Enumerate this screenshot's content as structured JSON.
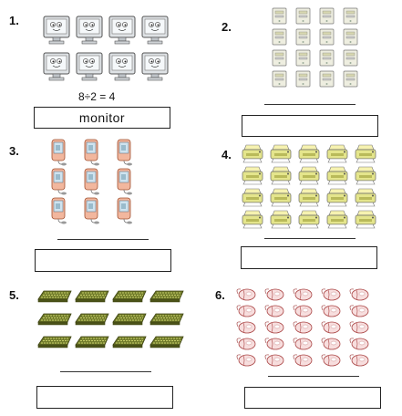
{
  "problems": [
    {
      "number": "1.",
      "item": "monitor",
      "equation": "8÷2 = 4",
      "answer": "monitor"
    },
    {
      "number": "2.",
      "item": "computer-tower"
    },
    {
      "number": "3.",
      "item": "smartphone"
    },
    {
      "number": "4.",
      "item": "printer"
    },
    {
      "number": "5.",
      "item": "keyboard"
    },
    {
      "number": "6.",
      "item": "mouse"
    }
  ]
}
